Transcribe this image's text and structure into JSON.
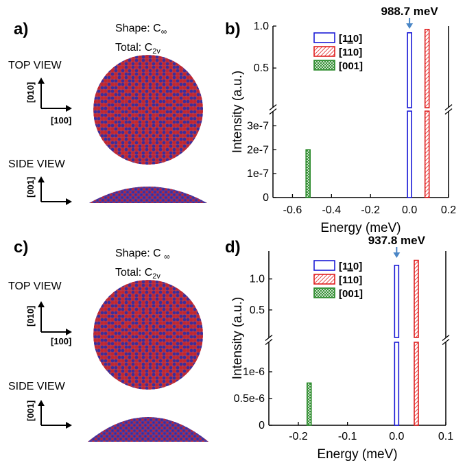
{
  "colors": {
    "blue": "#1a1ad6",
    "red": "#e02020",
    "green": "#2a8a2a",
    "dot_blue": "#3a2e9c",
    "dot_red": "#c2262e",
    "arrow": "#4a86c6",
    "axis": "#000000"
  },
  "panels": {
    "a": {
      "letter": "a)",
      "shape_prefix": "Shape: C",
      "shape_sub": "∞",
      "total_prefix": "Total: C",
      "total_sub": "2v",
      "top_view": "TOP VIEW",
      "side_view": "SIDE VIEW",
      "axis_010": "[010]",
      "axis_100": "[100]",
      "axis_001": "[001]"
    },
    "c": {
      "letter": "c)",
      "shape_prefix": "Shape: C ",
      "shape_sub": "∞",
      "total_prefix": "Total: C",
      "total_sub": "2v",
      "top_view": "TOP VIEW",
      "side_view": "SIDE VIEW",
      "axis_010": "[010]",
      "axis_100": "[100]",
      "axis_001": "[001]"
    }
  },
  "chart_data": [
    {
      "panel": "b)",
      "type": "bar",
      "xlabel": "Energy (meV)",
      "ylabel": "Intensity (a.u.)",
      "xlim": [
        -0.7,
        0.2
      ],
      "xticks": [
        "-0.6",
        "-0.4",
        "-0.2",
        "0.0",
        "0.2"
      ],
      "xtick_values": [
        -0.6,
        -0.4,
        -0.2,
        0.0,
        0.2
      ],
      "broken_y_axis": true,
      "y_upper": {
        "ylim": [
          0.06,
          1.0
        ],
        "ticks": [
          "0.5",
          "1.0"
        ],
        "tick_values": [
          0.5,
          1.0
        ]
      },
      "y_lower": {
        "ylim": [
          0,
          3.5e-07
        ],
        "ticks": [
          "0",
          "1e-7",
          "2e-7",
          "3e-7"
        ],
        "tick_values": [
          0,
          1e-07,
          2e-07,
          3e-07
        ]
      },
      "annotation": "988.7 meV",
      "annotation_x": 0.0,
      "legend_location": "top-center",
      "series": [
        {
          "name": "[110]",
          "name_prefix": "[1",
          "name_bar": "1",
          "name_suffix": "0]",
          "style": "open",
          "x": 0.0,
          "value": 0.92
        },
        {
          "name": "[110]",
          "style": "hatched",
          "x": 0.09,
          "value": 0.96
        },
        {
          "name": "[001]",
          "style": "crosshatch",
          "x": -0.52,
          "value": 2e-07
        }
      ]
    },
    {
      "panel": "d)",
      "type": "bar",
      "xlabel": "Energy (meV)",
      "ylabel": "Intensity (a.u.)",
      "xlim": [
        -0.26,
        0.1
      ],
      "xticks": [
        "-0.2",
        "-0.1",
        "0.0",
        "0.1"
      ],
      "xtick_values": [
        -0.2,
        -0.1,
        0.0,
        0.1
      ],
      "broken_y_axis": true,
      "y_upper": {
        "ylim": [
          0.1,
          1.45
        ],
        "ticks": [
          "0.5",
          "1.0"
        ],
        "tick_values": [
          0.5,
          1.0
        ]
      },
      "y_lower": {
        "ylim": [
          0,
          1.5e-06
        ],
        "ticks": [
          "0",
          "0.5e-6",
          "1e-6"
        ],
        "tick_values": [
          0,
          5e-07,
          1e-06
        ]
      },
      "annotation": "937.8 meV",
      "annotation_x": 0.0,
      "legend_location": "top-center",
      "series": [
        {
          "name": "[110]",
          "name_prefix": "[1",
          "name_bar": "1",
          "name_suffix": "0]",
          "style": "open",
          "x": 0.0,
          "value": 1.22
        },
        {
          "name": "[110]",
          "style": "hatched",
          "x": 0.04,
          "value": 1.3
        },
        {
          "name": "[001]",
          "style": "crosshatch",
          "x": -0.178,
          "value": 7.9e-07
        }
      ]
    }
  ]
}
